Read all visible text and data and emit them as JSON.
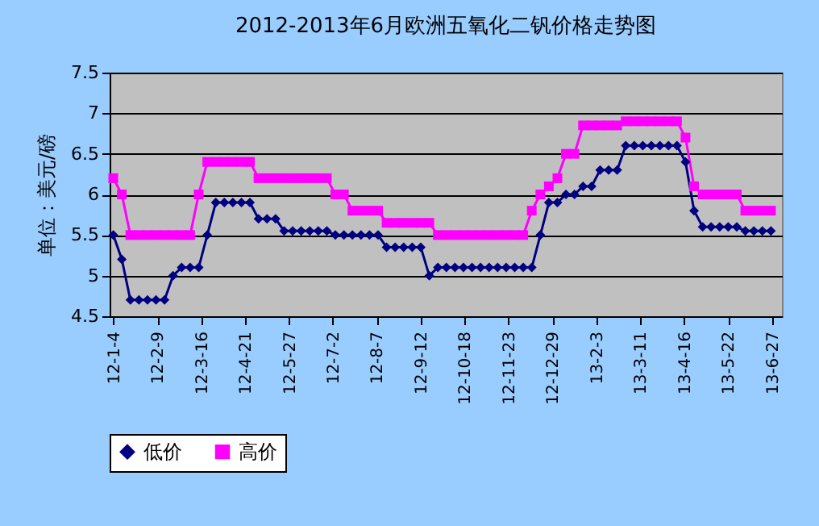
{
  "chart_data": {
    "type": "line",
    "title": "2012-2013年6月欧洲五氧化二钒价格走势图",
    "ylabel": "单位：美元/磅",
    "x": [
      "2012-01-04",
      "2012-01-11",
      "2012-01-18",
      "2012-01-25",
      "2012-02-01",
      "2012-02-08",
      "2012-02-15",
      "2012-02-22",
      "2012-02-29",
      "2012-03-07",
      "2012-03-14",
      "2012-03-21",
      "2012-03-28",
      "2012-04-04",
      "2012-04-11",
      "2012-04-18",
      "2012-04-25",
      "2012-05-02",
      "2012-05-09",
      "2012-05-16",
      "2012-05-23",
      "2012-05-30",
      "2012-06-06",
      "2012-06-13",
      "2012-06-20",
      "2012-06-27",
      "2012-07-04",
      "2012-07-11",
      "2012-07-18",
      "2012-07-25",
      "2012-08-01",
      "2012-08-08",
      "2012-08-15",
      "2012-08-22",
      "2012-08-29",
      "2012-09-05",
      "2012-09-12",
      "2012-09-19",
      "2012-09-26",
      "2012-10-03",
      "2012-10-10",
      "2012-10-17",
      "2012-10-24",
      "2012-10-31",
      "2012-11-07",
      "2012-11-14",
      "2012-11-21",
      "2012-11-28",
      "2012-12-05",
      "2012-12-12",
      "2012-12-19",
      "2012-12-26",
      "2013-01-02",
      "2013-01-09",
      "2013-01-16",
      "2013-01-23",
      "2013-01-30",
      "2013-02-06",
      "2013-02-13",
      "2013-02-20",
      "2013-02-27",
      "2013-03-06",
      "2013-03-13",
      "2013-03-20",
      "2013-03-27",
      "2013-04-03",
      "2013-04-10",
      "2013-04-17",
      "2013-04-24",
      "2013-05-01",
      "2013-05-08",
      "2013-05-15",
      "2013-05-22",
      "2013-05-29",
      "2013-06-05",
      "2013-06-12",
      "2013-06-19",
      "2013-06-26"
    ],
    "series": [
      {
        "name": "低价",
        "color": "#000080",
        "marker": "diamond",
        "values": [
          5.5,
          5.2,
          4.7,
          4.7,
          4.7,
          4.7,
          4.7,
          5.0,
          5.1,
          5.1,
          5.1,
          5.5,
          5.9,
          5.9,
          5.9,
          5.9,
          5.9,
          5.7,
          5.7,
          5.7,
          5.55,
          5.55,
          5.55,
          5.55,
          5.55,
          5.55,
          5.5,
          5.5,
          5.5,
          5.5,
          5.5,
          5.5,
          5.35,
          5.35,
          5.35,
          5.35,
          5.35,
          5.0,
          5.1,
          5.1,
          5.1,
          5.1,
          5.1,
          5.1,
          5.1,
          5.1,
          5.1,
          5.1,
          5.1,
          5.1,
          5.5,
          5.9,
          5.9,
          6.0,
          6.0,
          6.1,
          6.1,
          6.3,
          6.3,
          6.3,
          6.6,
          6.6,
          6.6,
          6.6,
          6.6,
          6.6,
          6.6,
          6.4,
          5.8,
          5.6,
          5.6,
          5.6,
          5.6,
          5.6,
          5.55,
          5.55,
          5.55,
          5.55
        ]
      },
      {
        "name": "高价",
        "color": "#ff00ff",
        "marker": "square",
        "values": [
          6.2,
          6.0,
          5.5,
          5.5,
          5.5,
          5.5,
          5.5,
          5.5,
          5.5,
          5.5,
          6.0,
          6.4,
          6.4,
          6.4,
          6.4,
          6.4,
          6.4,
          6.2,
          6.2,
          6.2,
          6.2,
          6.2,
          6.2,
          6.2,
          6.2,
          6.2,
          6.0,
          6.0,
          5.8,
          5.8,
          5.8,
          5.8,
          5.65,
          5.65,
          5.65,
          5.65,
          5.65,
          5.65,
          5.5,
          5.5,
          5.5,
          5.5,
          5.5,
          5.5,
          5.5,
          5.5,
          5.5,
          5.5,
          5.5,
          5.8,
          6.0,
          6.1,
          6.2,
          6.5,
          6.5,
          6.85,
          6.85,
          6.85,
          6.85,
          6.85,
          6.9,
          6.9,
          6.9,
          6.9,
          6.9,
          6.9,
          6.9,
          6.7,
          6.1,
          6.0,
          6.0,
          6.0,
          6.0,
          6.0,
          5.8,
          5.8,
          5.8,
          5.8
        ]
      }
    ],
    "xlim": [
      "2012-01-01",
      "2013-07-05"
    ],
    "xticks": [
      {
        "value": "2012-01-04",
        "label": "12-1-4"
      },
      {
        "value": "2012-02-09",
        "label": "12-2-9"
      },
      {
        "value": "2012-03-16",
        "label": "12-3-16"
      },
      {
        "value": "2012-04-21",
        "label": "12-4-21"
      },
      {
        "value": "2012-05-27",
        "label": "12-5-27"
      },
      {
        "value": "2012-07-02",
        "label": "12-7-2"
      },
      {
        "value": "2012-08-07",
        "label": "12-8-7"
      },
      {
        "value": "2012-09-12",
        "label": "12-9-12"
      },
      {
        "value": "2012-10-18",
        "label": "12-10-18"
      },
      {
        "value": "2012-11-23",
        "label": "12-11-23"
      },
      {
        "value": "2012-12-29",
        "label": "12-12-29"
      },
      {
        "value": "2013-02-03",
        "label": "13-2-3"
      },
      {
        "value": "2013-03-11",
        "label": "13-3-11"
      },
      {
        "value": "2013-04-16",
        "label": "13-4-16"
      },
      {
        "value": "2013-05-22",
        "label": "13-5-22"
      },
      {
        "value": "2013-06-27",
        "label": "13-6-27"
      }
    ],
    "ylim": [
      4.5,
      7.5
    ],
    "yticks": [
      4.5,
      5,
      5.5,
      6,
      6.5,
      7,
      7.5
    ],
    "grid": "y",
    "legend": "bottom"
  }
}
